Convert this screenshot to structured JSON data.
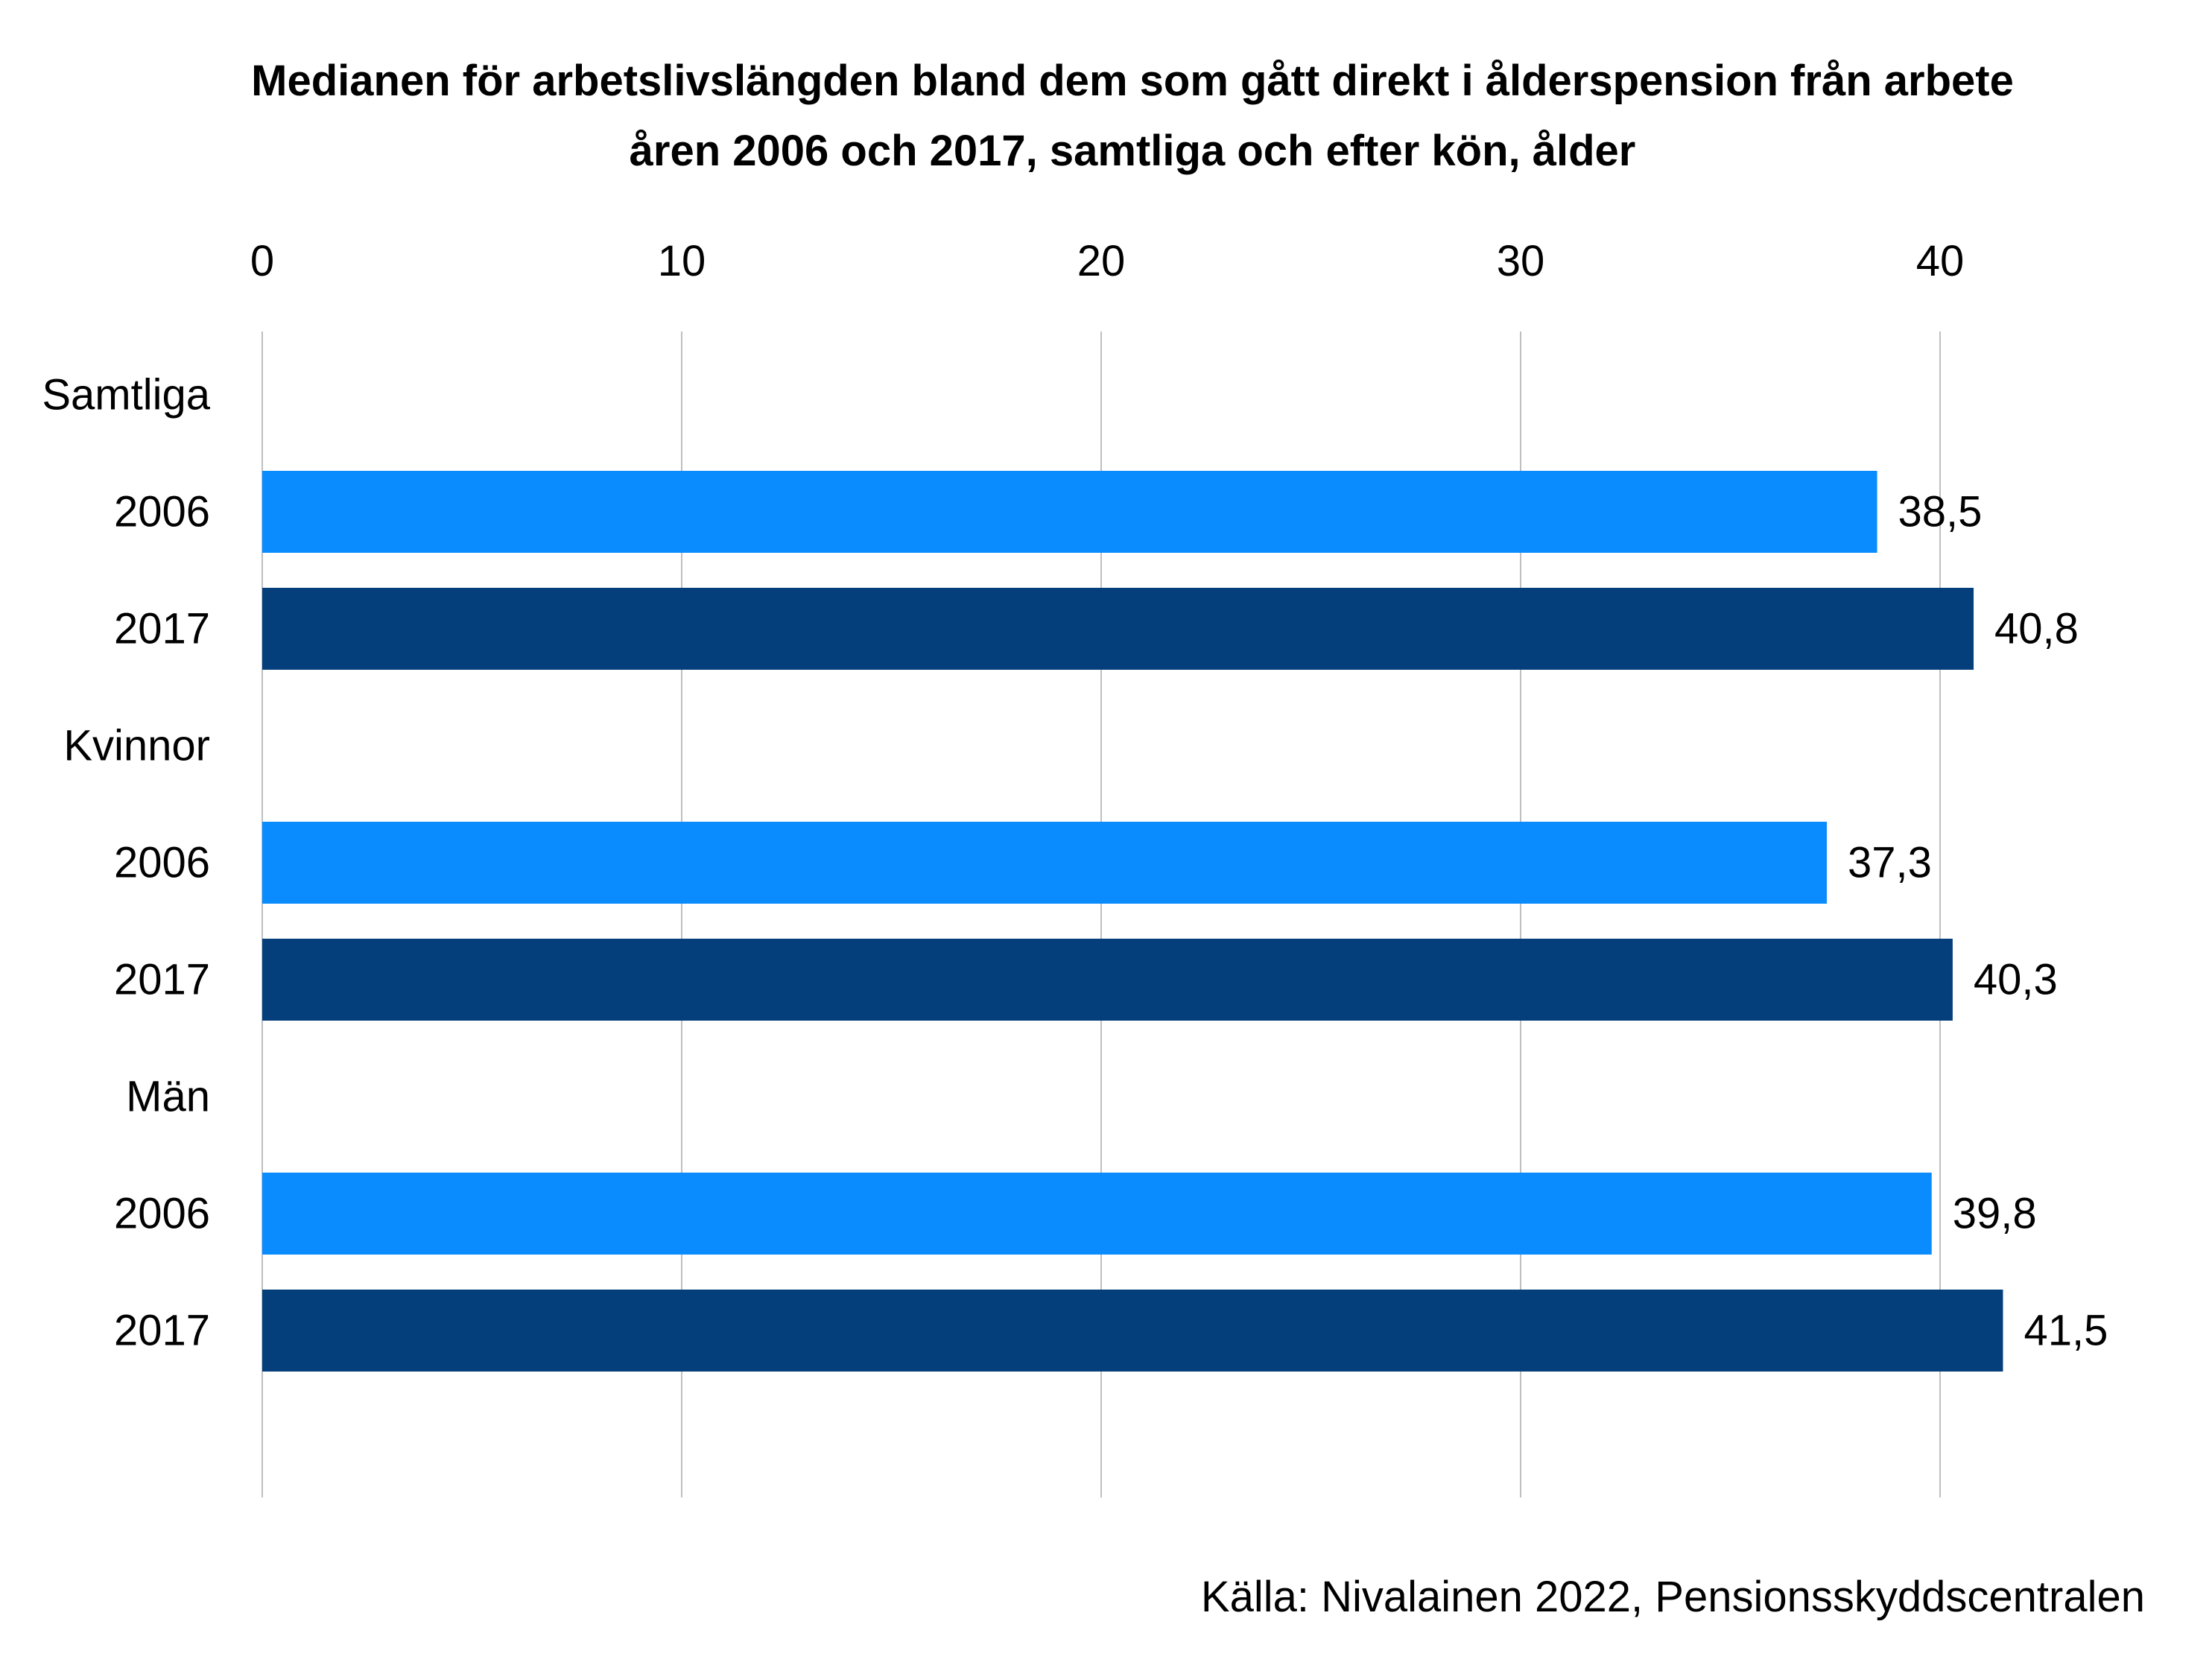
{
  "chart_data": {
    "type": "bar",
    "orientation": "horizontal",
    "title_lines": [
      "Medianen för arbetslivslängden bland dem som gått  direkt i ålderspension från arbete",
      "åren 2006 och 2017, samtliga och efter kön, ålder"
    ],
    "xlim": [
      0,
      43
    ],
    "x_ticks": [
      0,
      10,
      20,
      30,
      40
    ],
    "x_axis_position": "top",
    "grid": true,
    "rows": [
      {
        "label": "Samtliga",
        "kind": "group"
      },
      {
        "label": "2006",
        "kind": "bar",
        "value": 38.5,
        "value_label": "38,5",
        "color": "#0A8CFF"
      },
      {
        "label": "2017",
        "kind": "bar",
        "value": 40.8,
        "value_label": "40,8",
        "color": "#053F7B"
      },
      {
        "label": "Kvinnor",
        "kind": "group"
      },
      {
        "label": "2006",
        "kind": "bar",
        "value": 37.3,
        "value_label": "37,3",
        "color": "#0A8CFF"
      },
      {
        "label": "2017",
        "kind": "bar",
        "value": 40.3,
        "value_label": "40,3",
        "color": "#053F7B"
      },
      {
        "label": "Män",
        "kind": "group"
      },
      {
        "label": "2006",
        "kind": "bar",
        "value": 39.8,
        "value_label": "39,8",
        "color": "#0A8CFF"
      },
      {
        "label": "2017",
        "kind": "bar",
        "value": 41.5,
        "value_label": "41,5",
        "color": "#053F7B"
      }
    ]
  },
  "source": "Källa: Nivalainen 2022,  Pensionsskyddscentralen",
  "colors": {
    "bar_2006": "#0A8CFF",
    "bar_2017": "#053F7B",
    "grid": "#BFBFBF"
  }
}
